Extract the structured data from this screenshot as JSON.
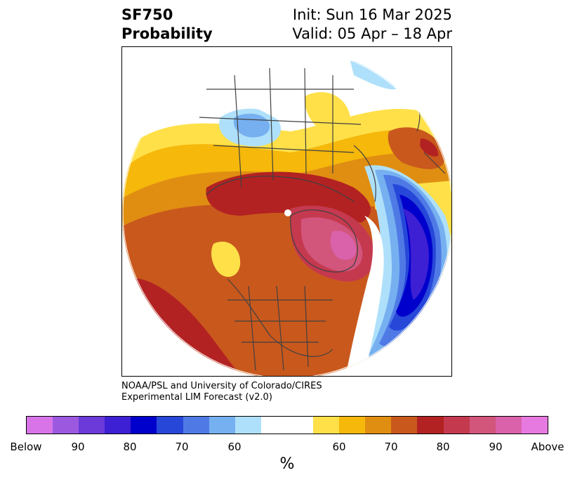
{
  "header": {
    "title_line1": "SF750",
    "title_line2": "Probability",
    "init": "Init: Sun 16 Mar 2025",
    "valid": "Valid: 05 Apr – 18 Apr"
  },
  "credit": {
    "line1": "NOAA/PSL and University of Colorado/CIRES",
    "line2": "Experimental LIM Forecast (v2.0)"
  },
  "colorbar": {
    "colors": [
      "#d874e8",
      "#9c59e0",
      "#6b3ad9",
      "#3d1fd4",
      "#0000cc",
      "#2747d9",
      "#4f7ae6",
      "#76b0f0",
      "#aee0fb",
      "#ffffff",
      "#ffffff",
      "#ffe048",
      "#f5b80b",
      "#e08e12",
      "#c9581d",
      "#b32222",
      "#c5394f",
      "#d2557c",
      "#d962ab",
      "#e77ae0"
    ],
    "tick_labels": [
      "Below",
      "90",
      "80",
      "70",
      "60",
      "60",
      "70",
      "80",
      "90",
      "Above"
    ],
    "unit": "%"
  },
  "map": {
    "projection": "north-polar-stereographic",
    "variable": "SF750 probability"
  }
}
